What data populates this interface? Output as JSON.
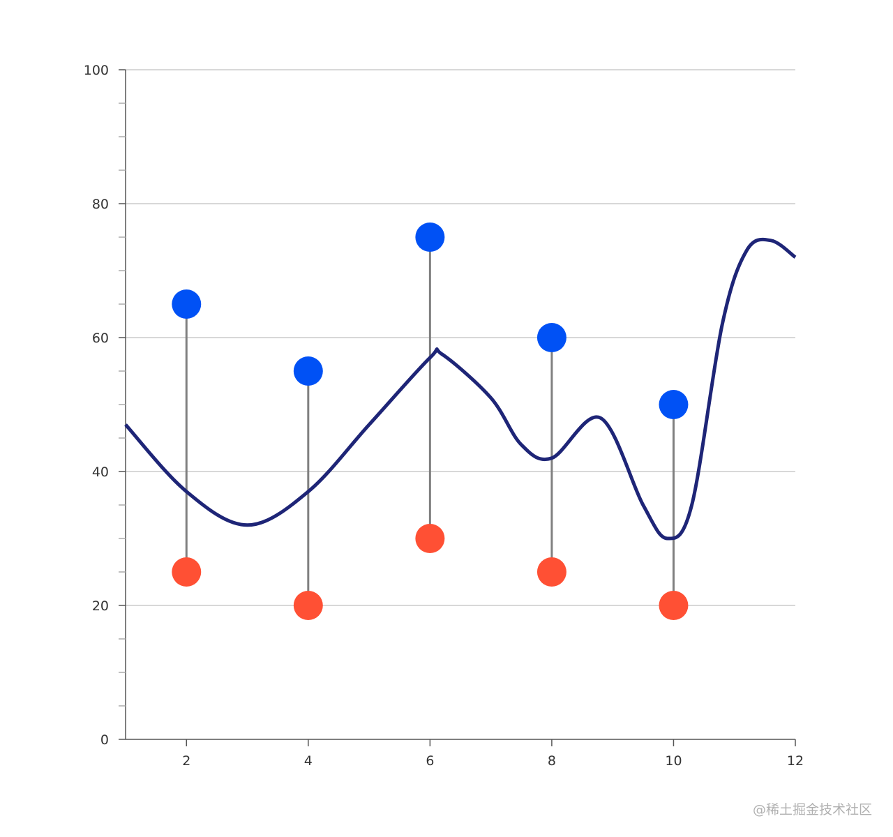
{
  "chart_data": {
    "type": "scatter",
    "title": "",
    "xlabel": "",
    "ylabel": "",
    "xlim": [
      1,
      12
    ],
    "ylim": [
      0,
      100
    ],
    "x_ticks": [
      2,
      4,
      6,
      8,
      10,
      12
    ],
    "y_ticks": [
      0,
      20,
      40,
      60,
      80,
      100
    ],
    "y_minor_step": 5,
    "grid": "horizontal",
    "categories": [
      2,
      4,
      6,
      8,
      10
    ],
    "high_values": [
      65,
      55,
      75,
      60,
      50
    ],
    "low_values": [
      25,
      20,
      30,
      25,
      20
    ],
    "trend_line": {
      "x": [
        1,
        2,
        3,
        4,
        5,
        6,
        6.2,
        7,
        7.5,
        8,
        8.8,
        9.5,
        9.9,
        10.3,
        10.8,
        11.2,
        11.6,
        12
      ],
      "y": [
        47,
        37,
        32,
        37,
        47,
        57,
        57.5,
        51,
        44,
        42,
        48,
        35,
        30,
        35,
        62,
        73,
        74.5,
        72
      ]
    },
    "colors": {
      "high": "#0051f5",
      "low": "#ff5034",
      "connector": "#808080",
      "line": "#1e2577",
      "grid": "#cccccc",
      "axis": "#555555"
    }
  },
  "watermark": "@稀土掘金技术社区"
}
